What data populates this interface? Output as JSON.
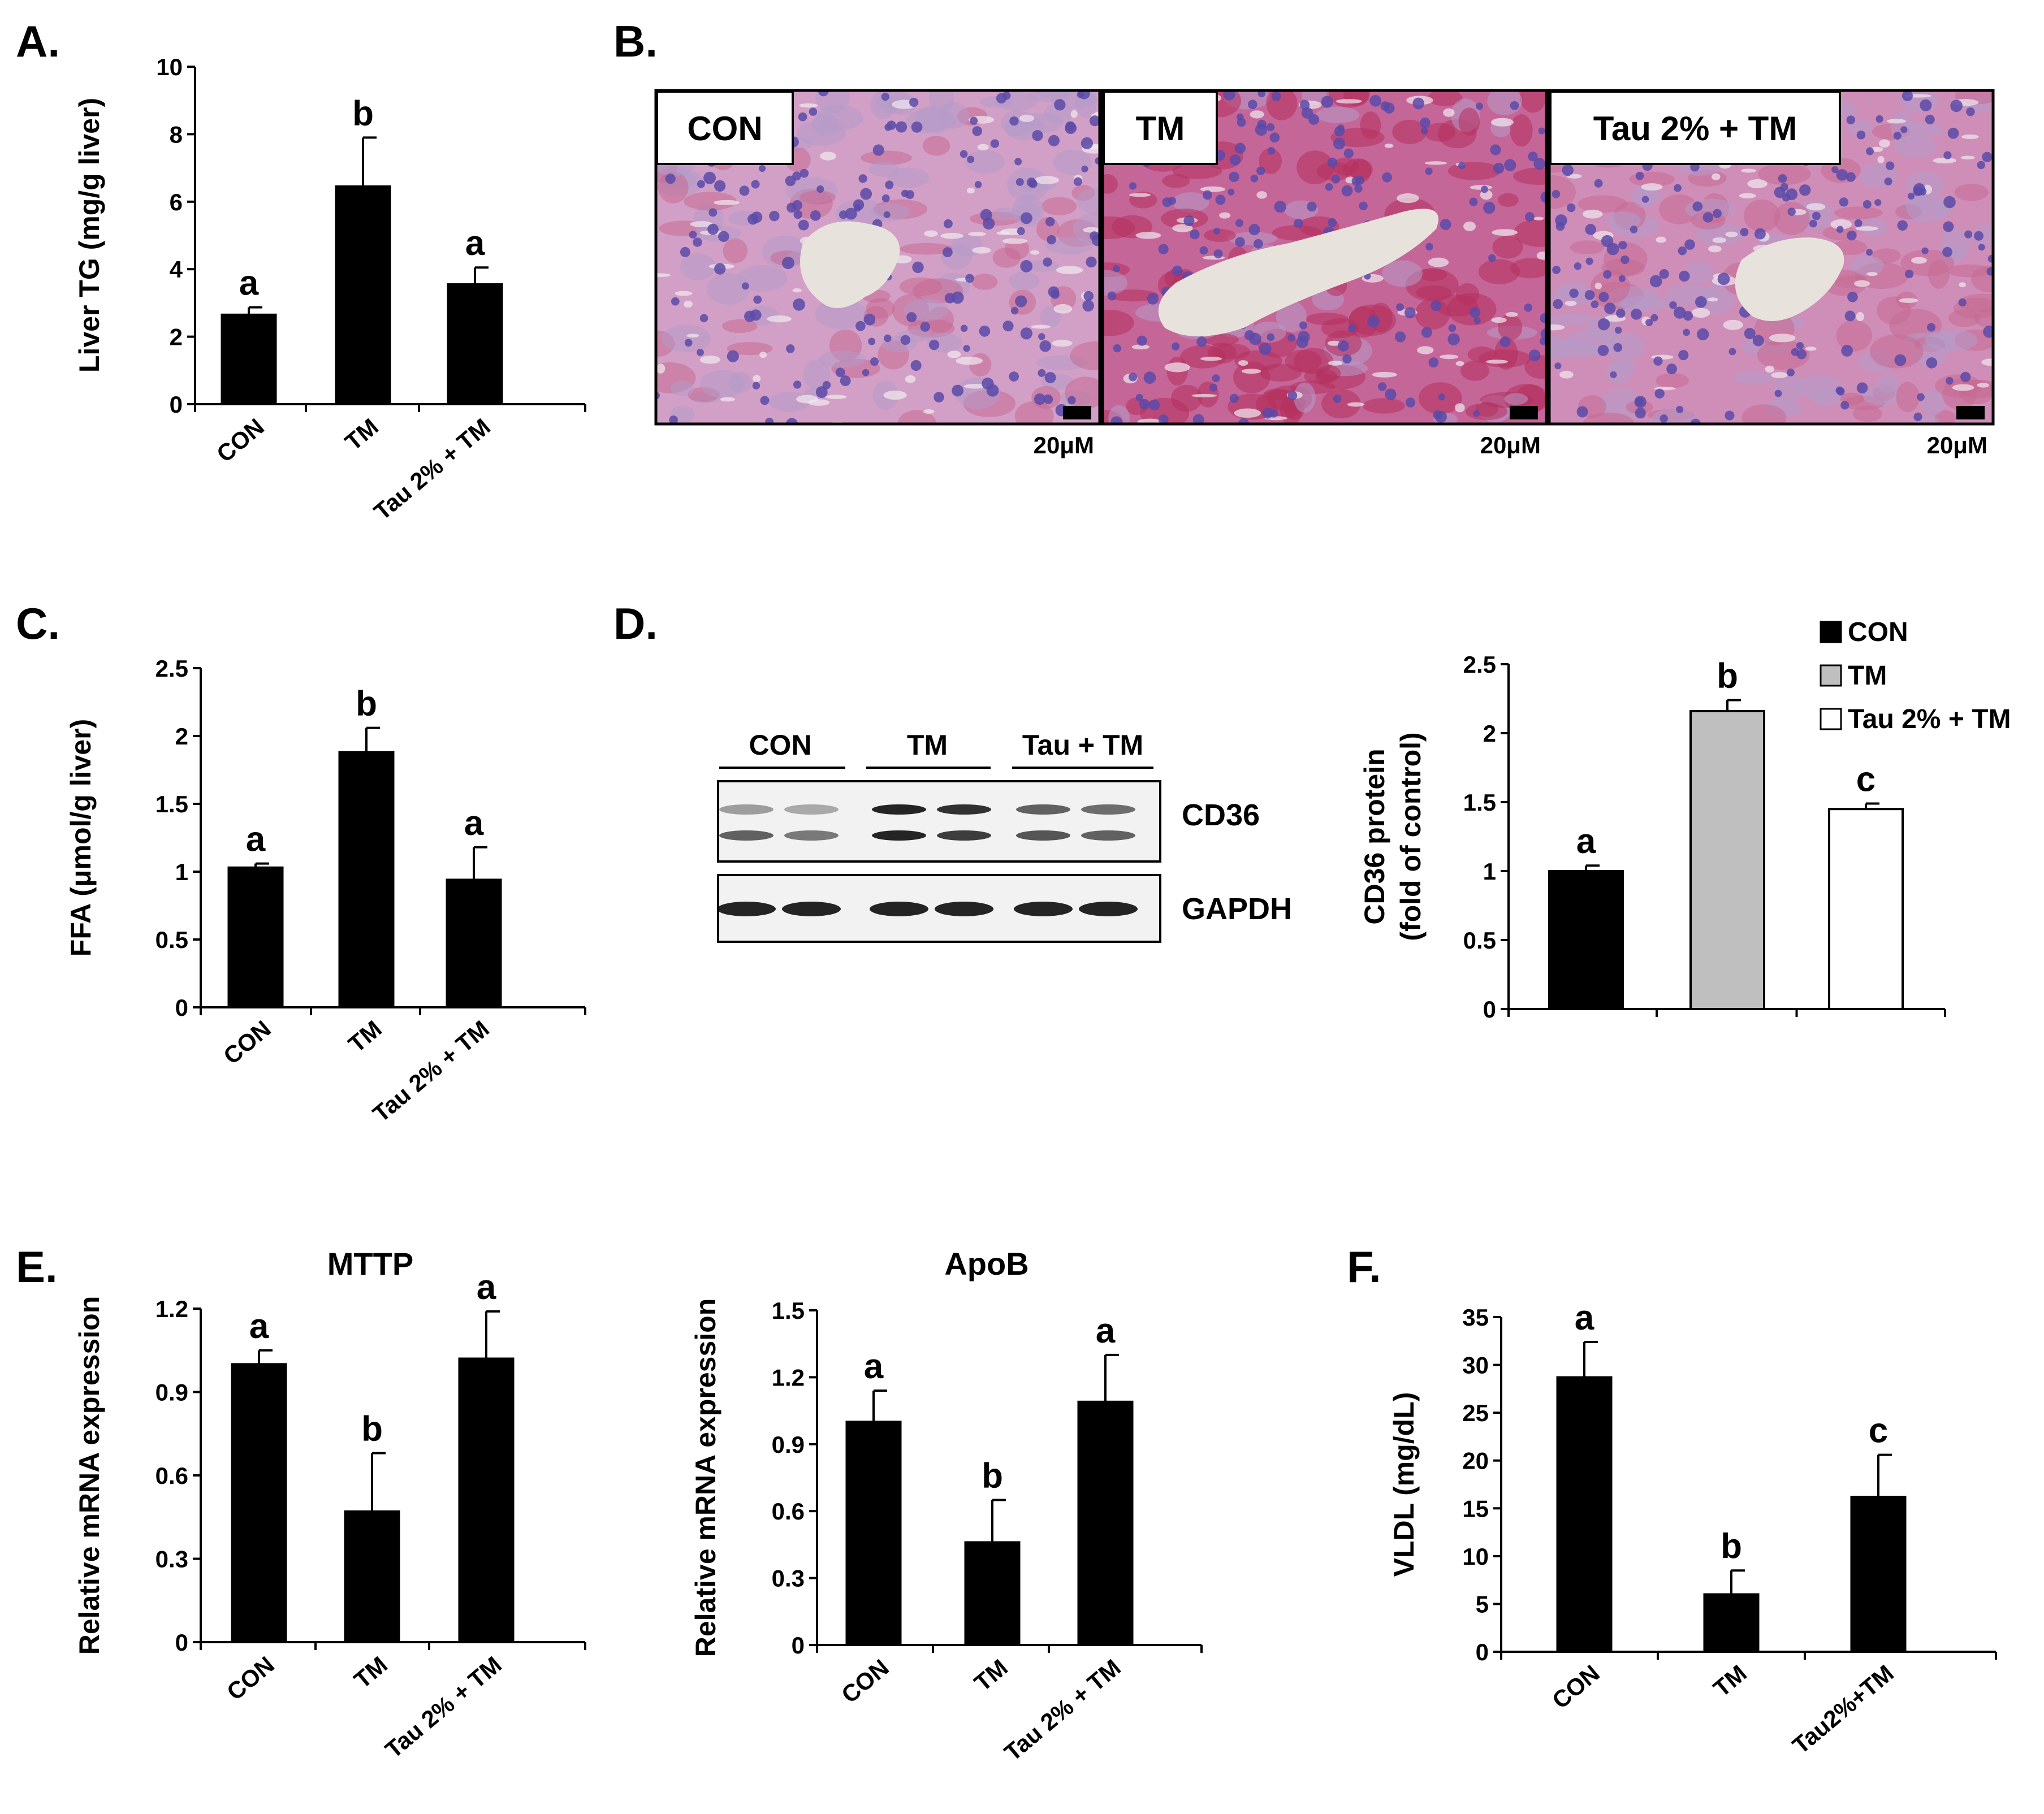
{
  "colors": {
    "bar": "#000000",
    "bar_gray": "#bfbfbf",
    "bar_white": "#ffffff",
    "stain_pink": "#c4537a",
    "stain_purple": "#8466ad",
    "lumen": "#e8e2dc"
  },
  "panel_labels": {
    "A": "A.",
    "B": "B.",
    "C": "C.",
    "D": "D.",
    "E": "E.",
    "F": "F."
  },
  "micrographs": [
    {
      "label": "CON",
      "scale": "20μM",
      "stain_intensity": 0.2
    },
    {
      "label": "TM",
      "scale": "20μM",
      "stain_intensity": 0.85
    },
    {
      "label": "Tau 2% + TM",
      "scale": "20μM",
      "stain_intensity": 0.4
    }
  ],
  "blot": {
    "groups": [
      "CON",
      "TM",
      "Tau + TM"
    ],
    "bands": [
      "CD36",
      "GAPDH"
    ]
  },
  "legend": [
    "CON",
    "TM",
    "Tau 2% + TM"
  ],
  "chart_data": [
    {
      "id": "A",
      "type": "bar",
      "categories": [
        "CON",
        "TM",
        "Tau 2% + TM"
      ],
      "values": [
        2.65,
        6.45,
        3.55
      ],
      "errors": [
        0.22,
        1.45,
        0.5
      ],
      "letters": [
        "a",
        "b",
        "a"
      ],
      "ylabel": "Liver TG (mg/g liver)",
      "title": "",
      "ylim": [
        0,
        10
      ],
      "yticks": [
        0,
        2,
        4,
        6,
        8,
        10
      ],
      "ytick_labels": [
        "0",
        "2",
        "4",
        "6",
        "8",
        "10"
      ]
    },
    {
      "id": "C",
      "type": "bar",
      "categories": [
        "CON",
        "TM",
        "Tau 2% + TM"
      ],
      "values": [
        1.03,
        1.88,
        0.94
      ],
      "errors": [
        0.03,
        0.18,
        0.24
      ],
      "letters": [
        "a",
        "b",
        "a"
      ],
      "ylabel": "FFA (μmol/g liver)",
      "title": "",
      "ylim": [
        0,
        2.5
      ],
      "yticks": [
        0,
        0.5,
        1,
        1.5,
        2,
        2.5
      ],
      "ytick_labels": [
        "0",
        "0.5",
        "1",
        "1.5",
        "2",
        "2.5"
      ]
    },
    {
      "id": "D",
      "type": "bar",
      "categories": [
        "CON",
        "TM",
        "Tau 2% + TM"
      ],
      "values": [
        1.0,
        2.16,
        1.45
      ],
      "errors": [
        0.04,
        0.08,
        0.04
      ],
      "letters": [
        "a",
        "b",
        "c"
      ],
      "ylabel": "CD36 protein",
      "ylabel2": "(fold of control)",
      "title": "",
      "ylim": [
        0,
        2.5
      ],
      "yticks": [
        0,
        0.5,
        1,
        1.5,
        2,
        2.5
      ],
      "ytick_labels": [
        "0",
        "0.5",
        "1",
        "1.5",
        "2",
        "2.5"
      ]
    },
    {
      "id": "E1",
      "type": "bar",
      "categories": [
        "CON",
        "TM",
        "Tau 2% + TM"
      ],
      "values": [
        1.0,
        0.47,
        1.02
      ],
      "errors": [
        0.05,
        0.21,
        0.17
      ],
      "letters": [
        "a",
        "b",
        "a"
      ],
      "ylabel": "Relative mRNA expression",
      "title": "MTTP",
      "ylim": [
        0,
        1.2
      ],
      "yticks": [
        0,
        0.3,
        0.6,
        0.9,
        1.2
      ],
      "ytick_labels": [
        "0",
        "0.3",
        "0.6",
        "0.9",
        "1.2"
      ]
    },
    {
      "id": "E2",
      "type": "bar",
      "categories": [
        "CON",
        "TM",
        "Tau 2% + TM"
      ],
      "values": [
        1.0,
        0.46,
        1.09
      ],
      "errors": [
        0.14,
        0.19,
        0.21
      ],
      "letters": [
        "a",
        "b",
        "a"
      ],
      "ylabel": "Relative mRNA expression",
      "title": "ApoB",
      "ylim": [
        0,
        1.5
      ],
      "yticks": [
        0,
        0.3,
        0.6,
        0.9,
        1.2,
        1.5
      ],
      "ytick_labels": [
        "0",
        "0.3",
        "0.6",
        "0.9",
        "1.2",
        "1.5"
      ]
    },
    {
      "id": "F",
      "type": "bar",
      "categories": [
        "CON",
        "TM",
        "Tau2%+TM"
      ],
      "values": [
        28.7,
        6.0,
        16.2
      ],
      "errors": [
        3.7,
        2.5,
        4.4
      ],
      "letters": [
        "a",
        "b",
        "c"
      ],
      "ylabel": "VLDL (mg/dL)",
      "title": "",
      "ylim": [
        0,
        35
      ],
      "yticks": [
        0,
        5,
        10,
        15,
        20,
        25,
        30,
        35
      ],
      "ytick_labels": [
        "0",
        "5",
        "10",
        "15",
        "20",
        "25",
        "30",
        "35"
      ]
    }
  ]
}
